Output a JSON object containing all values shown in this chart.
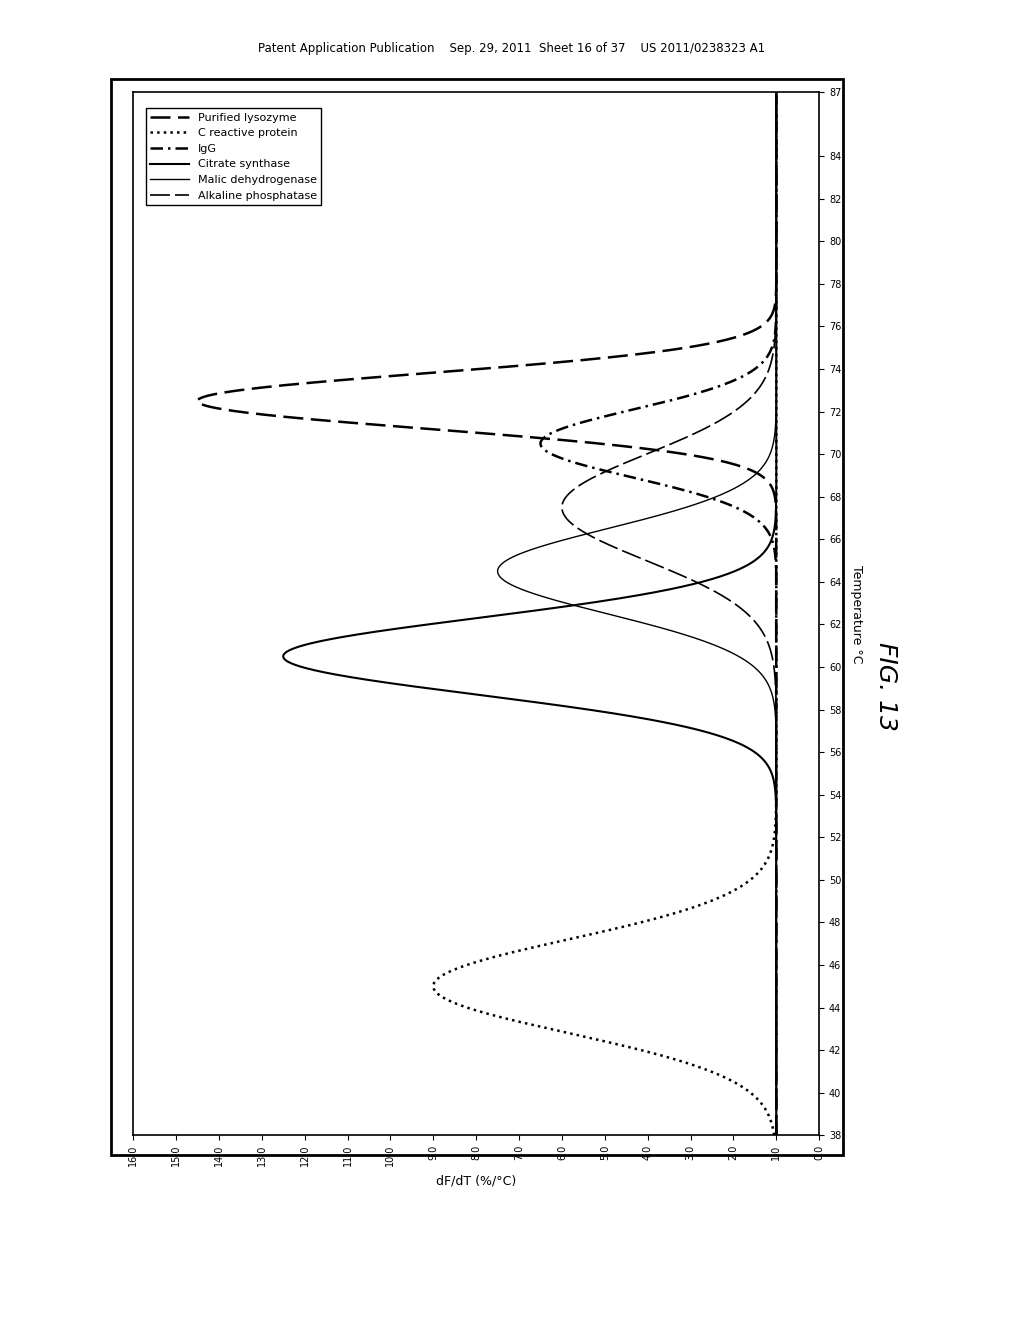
{
  "title": "FIG. 13",
  "xlabel_rot": "Temperature °C",
  "ylabel_rot": "dF/dT (%/°C)",
  "temp_range": [
    38,
    87
  ],
  "dfdt_range": [
    0.0,
    16.0
  ],
  "temp_ticks": [
    38,
    40,
    42,
    44,
    46,
    48,
    50,
    52,
    54,
    56,
    58,
    60,
    62,
    64,
    66,
    68,
    70,
    72,
    74,
    76,
    78,
    80,
    82,
    84,
    87
  ],
  "dfdt_ticks": [
    0.0,
    1.0,
    2.0,
    3.0,
    4.0,
    5.0,
    6.0,
    7.0,
    8.0,
    9.0,
    10.0,
    11.0,
    12.0,
    13.0,
    14.0,
    15.0,
    16.0
  ],
  "legend_labels": [
    "Purified lysozyme",
    "C reactive protein",
    "IgG",
    "Citrate synthase",
    "Malic dehydrogenase",
    "Alkaline phosphatase"
  ],
  "background_color": "#ffffff",
  "header_text": "Patent Application Publication    Sep. 29, 2011  Sheet 16 of 37    US 2011/0238323 A1"
}
